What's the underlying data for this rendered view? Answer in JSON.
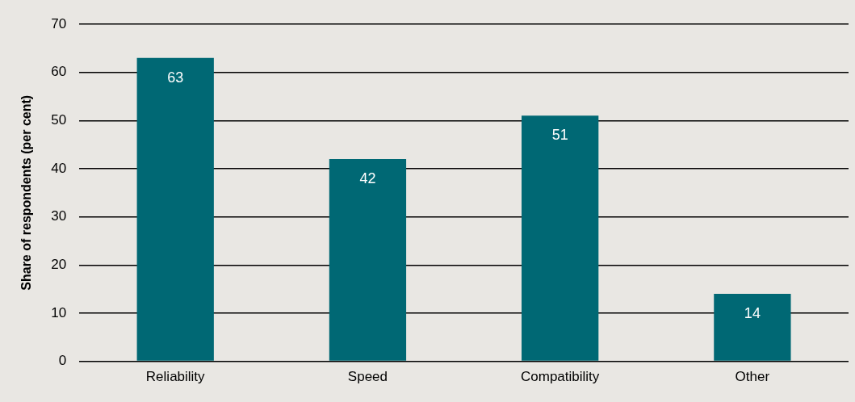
{
  "chart_data": {
    "type": "bar",
    "ylabel": "Share of respondents (per cent)",
    "categories": [
      "Reliability",
      "Speed",
      "Compatibility",
      "Other"
    ],
    "values": [
      63,
      42,
      51,
      14
    ],
    "color": "#006874",
    "ylim": [
      0,
      70
    ],
    "yticks": [
      0,
      10,
      20,
      30,
      40,
      50,
      60,
      70
    ],
    "grid": "y",
    "data_labels": true
  }
}
